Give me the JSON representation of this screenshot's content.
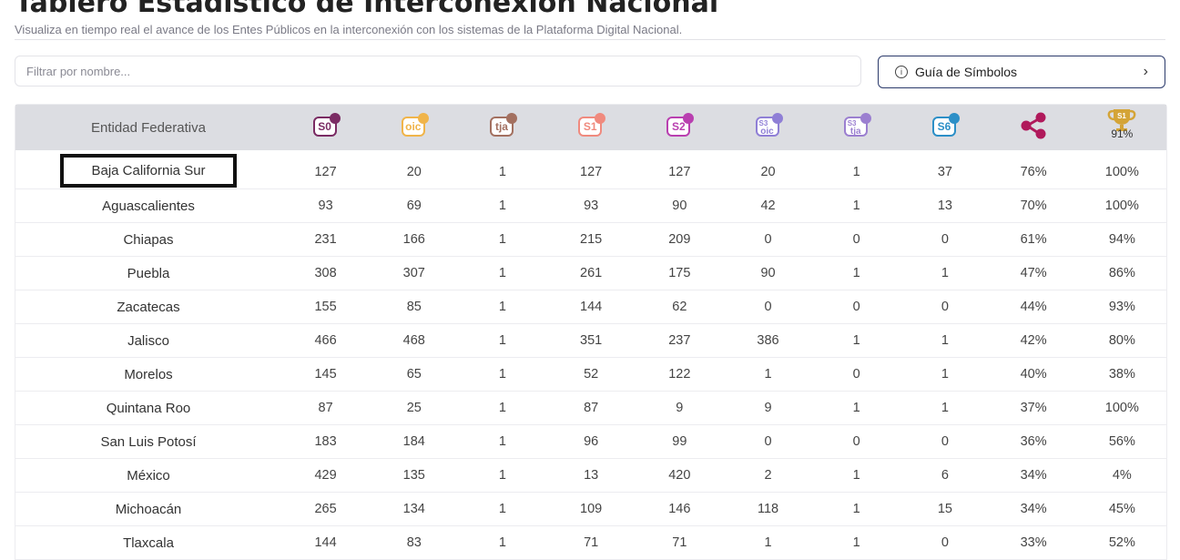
{
  "header": {
    "title": "Tablero Estadístico de Interconexión Nacional",
    "subtitle": "Visualiza en tiempo real el avance de los Entes Públicos en la interconexión con los sistemas de la Plataforma Digital Nacional."
  },
  "filter": {
    "placeholder": "Filtrar por nombre..."
  },
  "guide_button": {
    "label": "Guía de Símbolos",
    "info_glyph": "i",
    "chevron": "›"
  },
  "table": {
    "entity_header": "Entidad Federativa",
    "columns": [
      {
        "icon": "s0-badge-icon",
        "badge": "S0",
        "color": "#7a2b63",
        "dot": "#7a2b63"
      },
      {
        "icon": "oic-badge-icon",
        "badge": "oic",
        "color": "#f0b44a",
        "dot": "#f0b44a"
      },
      {
        "icon": "tja-badge-icon",
        "badge": "tja",
        "color": "#a37060",
        "dot": "#a37060"
      },
      {
        "icon": "s1-badge-icon",
        "badge": "S1",
        "color": "#f08a7e",
        "dot": "#f08a7e"
      },
      {
        "icon": "s2-badge-icon",
        "badge": "S2",
        "color": "#b93fb0",
        "dot": "#b93fb0"
      },
      {
        "icon": "s3-oic-badge-icon",
        "badge_top": "S3",
        "badge": "oic",
        "color": "#8f7fd6",
        "dot": "#8f7fd6"
      },
      {
        "icon": "s3-tja-badge-icon",
        "badge_top": "S3",
        "badge": "tja",
        "color": "#9b7fd0",
        "dot": "#9b7fd0"
      },
      {
        "icon": "s6-badge-icon",
        "badge": "S6",
        "color": "#2c8fc7",
        "dot": "#2c8fc7"
      },
      {
        "icon": "share-icon",
        "color": "#b0195b"
      },
      {
        "icon": "trophy-icon",
        "badge": "S1",
        "pct": "91%",
        "color": "#d4a437"
      }
    ],
    "rows": [
      {
        "entity": "Baja California Sur",
        "values": [
          "127",
          "20",
          "1",
          "127",
          "127",
          "20",
          "1",
          "37",
          "76%",
          "100%"
        ]
      },
      {
        "entity": "Aguascalientes",
        "values": [
          "93",
          "69",
          "1",
          "93",
          "90",
          "42",
          "1",
          "13",
          "70%",
          "100%"
        ]
      },
      {
        "entity": "Chiapas",
        "values": [
          "231",
          "166",
          "1",
          "215",
          "209",
          "0",
          "0",
          "0",
          "61%",
          "94%"
        ]
      },
      {
        "entity": "Puebla",
        "values": [
          "308",
          "307",
          "1",
          "261",
          "175",
          "90",
          "1",
          "1",
          "47%",
          "86%"
        ]
      },
      {
        "entity": "Zacatecas",
        "values": [
          "155",
          "85",
          "1",
          "144",
          "62",
          "0",
          "0",
          "0",
          "44%",
          "93%"
        ]
      },
      {
        "entity": "Jalisco",
        "values": [
          "466",
          "468",
          "1",
          "351",
          "237",
          "386",
          "1",
          "1",
          "42%",
          "80%"
        ]
      },
      {
        "entity": "Morelos",
        "values": [
          "145",
          "65",
          "1",
          "52",
          "122",
          "1",
          "0",
          "1",
          "40%",
          "38%"
        ]
      },
      {
        "entity": "Quintana Roo",
        "values": [
          "87",
          "25",
          "1",
          "87",
          "9",
          "9",
          "1",
          "1",
          "37%",
          "100%"
        ]
      },
      {
        "entity": "San Luis Potosí",
        "values": [
          "183",
          "184",
          "1",
          "96",
          "99",
          "0",
          "0",
          "0",
          "36%",
          "56%"
        ]
      },
      {
        "entity": "México",
        "values": [
          "429",
          "135",
          "1",
          "13",
          "420",
          "2",
          "1",
          "6",
          "34%",
          "4%"
        ]
      },
      {
        "entity": "Michoacán",
        "values": [
          "265",
          "134",
          "1",
          "109",
          "146",
          "118",
          "1",
          "15",
          "34%",
          "45%"
        ]
      },
      {
        "entity": "Tlaxcala",
        "values": [
          "144",
          "83",
          "1",
          "71",
          "71",
          "1",
          "1",
          "0",
          "33%",
          "52%"
        ]
      }
    ],
    "highlighted_row": 0
  }
}
